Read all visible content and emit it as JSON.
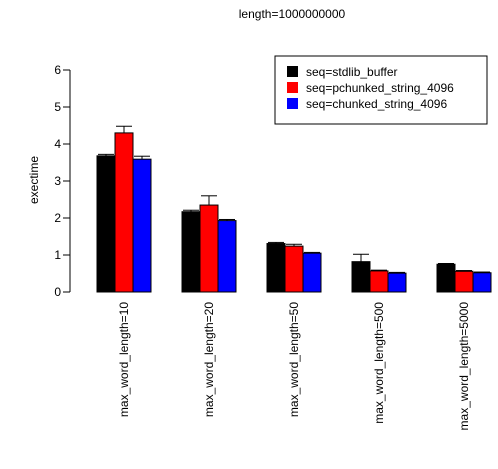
{
  "chart_data": {
    "type": "bar",
    "title": "length=1000000000",
    "xlabel": "",
    "ylabel": "exectime",
    "ylim": [
      0,
      6
    ],
    "yticks": [
      0,
      1,
      2,
      3,
      4,
      5,
      6
    ],
    "grid": false,
    "legend_position": "top-right",
    "categories": [
      "max_word_length=10",
      "max_word_length=20",
      "max_word_length=50",
      "max_word_length=500",
      "max_word_length=5000"
    ],
    "series": [
      {
        "name": "seq=stdlib_buffer",
        "color": "#000000",
        "values": [
          3.68,
          2.17,
          1.31,
          0.82,
          0.75
        ],
        "error_upper": [
          3.72,
          2.21,
          1.34,
          1.02,
          0.77
        ]
      },
      {
        "name": "seq=pchunked_string_4096",
        "color": "#ff0000",
        "values": [
          4.3,
          2.35,
          1.24,
          0.57,
          0.56
        ],
        "error_upper": [
          4.48,
          2.6,
          1.29,
          0.59,
          0.58
        ]
      },
      {
        "name": "seq=chunked_string_4096",
        "color": "#0000ff",
        "values": [
          3.59,
          1.93,
          1.05,
          0.51,
          0.52
        ],
        "error_upper": [
          3.67,
          1.96,
          1.07,
          0.53,
          0.54
        ]
      }
    ]
  }
}
